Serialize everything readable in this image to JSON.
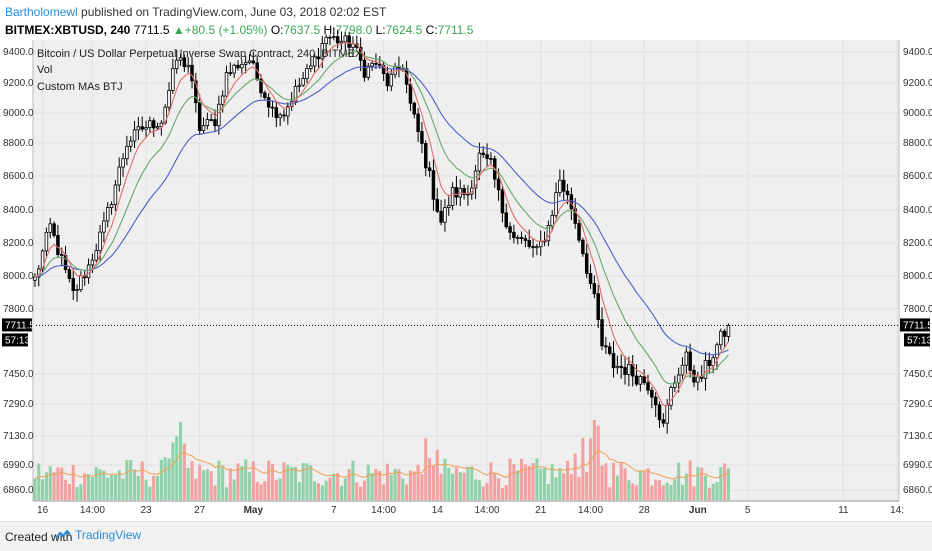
{
  "header": {
    "author": "Bartholomewl",
    "published_text": " published on TradingView.com, June 03, 2018 02:02 EST",
    "symbol": "BITMEX:XBTUSD, 240",
    "last": "7711.5",
    "change": "+80.5 (+1.05%)",
    "o_label": "O:",
    "o": "7637.5",
    "h_label": "H:",
    "h": "7798.0",
    "l_label": "L:",
    "l": "7624.5",
    "c_label": "C:",
    "c": "7711.5"
  },
  "legend": {
    "title": "Bitcoin / US Dollar Perpetual Inverse Swap Contract, 240, BITMEX",
    "vol": "Vol",
    "mas": "Custom MAs BTJ"
  },
  "badges": {
    "price": "7711.5",
    "countdown": "57:13"
  },
  "footer": {
    "created_with": "Created with",
    "brand": "TradingView"
  },
  "colors": {
    "plot_bg": "#efefef",
    "up": "#000000",
    "down": "#000000",
    "ma_fast": "#e26d6d",
    "ma_mid": "#6aa86a",
    "ma_slow": "#4c5fc8",
    "vol_up": "#8fd1a8",
    "vol_down": "#f2a0a0",
    "vol_ma": "#f0a050",
    "brand": "#2a8cd9"
  },
  "chart_data": {
    "type": "candlestick",
    "title": "Bitcoin / US Dollar Perpetual Inverse Swap Contract, 240, BITMEX",
    "ylim": [
      6780,
      9560
    ],
    "y_ticks": [
      9400,
      9200,
      9000,
      8800,
      8600,
      8400,
      8200,
      8000,
      7800,
      7450,
      7290,
      7130,
      6990,
      6860
    ],
    "y_tick_labels": [
      "9400.0",
      "9200.0",
      "9000.0",
      "8800.0",
      "8600.0",
      "8400.0",
      "8200.0",
      "8000.0",
      "7800.0",
      "7450.0",
      "7290.0",
      "7130.0",
      "6990.0",
      "6860.0"
    ],
    "x_ticks": [
      {
        "label": "16",
        "bar": 2
      },
      {
        "label": "14:00",
        "bar": 15
      },
      {
        "label": "23",
        "bar": 29
      },
      {
        "label": "27",
        "bar": 43
      },
      {
        "label": "May",
        "bar": 57
      },
      {
        "label": "7",
        "bar": 78
      },
      {
        "label": "14:00",
        "bar": 91
      },
      {
        "label": "14",
        "bar": 105
      },
      {
        "label": "14:00",
        "bar": 118
      },
      {
        "label": "21",
        "bar": 132
      },
      {
        "label": "14:00",
        "bar": 145
      },
      {
        "label": "28",
        "bar": 159
      },
      {
        "label": "Jun",
        "bar": 173
      },
      {
        "label": "5",
        "bar": 186
      },
      {
        "label": "11",
        "bar": 211
      },
      {
        "label": "14:",
        "bar": 225
      }
    ],
    "bars_total": 226,
    "anchors": [
      [
        0,
        7980
      ],
      [
        4,
        8300
      ],
      [
        8,
        8020
      ],
      [
        10,
        7890
      ],
      [
        14,
        8060
      ],
      [
        18,
        8300
      ],
      [
        24,
        8800
      ],
      [
        28,
        8900
      ],
      [
        33,
        8950
      ],
      [
        37,
        9350
      ],
      [
        40,
        9320
      ],
      [
        43,
        8900
      ],
      [
        47,
        8950
      ],
      [
        50,
        9250
      ],
      [
        53,
        9320
      ],
      [
        56,
        9350
      ],
      [
        58,
        9230
      ],
      [
        62,
        9020
      ],
      [
        65,
        9000
      ],
      [
        68,
        9150
      ],
      [
        72,
        9300
      ],
      [
        76,
        9500
      ],
      [
        80,
        9470
      ],
      [
        83,
        9450
      ],
      [
        86,
        9280
      ],
      [
        89,
        9330
      ],
      [
        92,
        9200
      ],
      [
        96,
        9320
      ],
      [
        98,
        9050
      ],
      [
        101,
        8780
      ],
      [
        104,
        8500
      ],
      [
        106,
        8330
      ],
      [
        109,
        8500
      ],
      [
        113,
        8500
      ],
      [
        116,
        8720
      ],
      [
        119,
        8660
      ],
      [
        122,
        8400
      ],
      [
        125,
        8230
      ],
      [
        128,
        8200
      ],
      [
        131,
        8140
      ],
      [
        134,
        8300
      ],
      [
        137,
        8580
      ],
      [
        140,
        8420
      ],
      [
        143,
        8150
      ],
      [
        146,
        7850
      ],
      [
        148,
        7600
      ],
      [
        151,
        7500
      ],
      [
        154,
        7480
      ],
      [
        157,
        7440
      ],
      [
        160,
        7400
      ],
      [
        162,
        7320
      ],
      [
        164,
        7170
      ],
      [
        166,
        7360
      ],
      [
        168,
        7470
      ],
      [
        170,
        7530
      ],
      [
        173,
        7400
      ],
      [
        176,
        7520
      ],
      [
        178,
        7600
      ],
      [
        181,
        7711.5
      ]
    ],
    "last_close": 7711.5,
    "series": [
      {
        "name": "Vol",
        "kind": "volume"
      },
      {
        "name": "Custom MAs BTJ",
        "kind": "moving_averages",
        "lines": [
          "fast",
          "mid",
          "slow"
        ]
      }
    ]
  }
}
